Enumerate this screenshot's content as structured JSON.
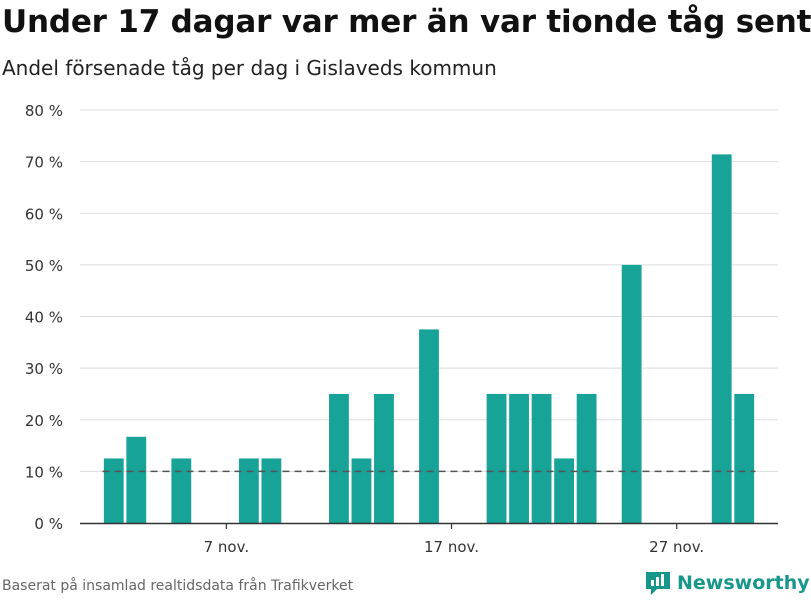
{
  "title": "Under 17 dagar var mer än var tionde tåg sent",
  "subtitle": "Andel försenade tåg per dag i Gislaveds kommun",
  "source": "Baserat på insamlad realtidsdata från Trafikverket",
  "brand": "Newsworthy",
  "colors": {
    "bar": "#17a398",
    "grid": "#dddddd",
    "axis": "#333333",
    "reference": "#555555",
    "brand": "#17968a"
  },
  "chart_data": {
    "type": "bar",
    "x": [
      2,
      3,
      5,
      8,
      9,
      12,
      13,
      14,
      16,
      19,
      20,
      21,
      22,
      23,
      25,
      29,
      30
    ],
    "values": [
      12.5,
      16.7,
      12.5,
      12.5,
      12.5,
      25,
      12.5,
      25,
      37.5,
      25,
      25,
      25,
      12.5,
      25,
      50,
      71.4,
      25
    ],
    "x_ticks": [
      {
        "x": 7,
        "label": "7 nov."
      },
      {
        "x": 17,
        "label": "17 nov."
      },
      {
        "x": 27,
        "label": "27 nov."
      }
    ],
    "y_ticks": [
      "0 %",
      "10 %",
      "20 %",
      "30 %",
      "40 %",
      "50 %",
      "60 %",
      "70 %",
      "80 %"
    ],
    "ylim": [
      0,
      80
    ],
    "xlim": [
      0.5,
      31.5
    ],
    "reference_line": {
      "value": 10,
      "x_range": [
        1.5,
        30.5
      ],
      "style": "dashed"
    },
    "grid": true
  }
}
